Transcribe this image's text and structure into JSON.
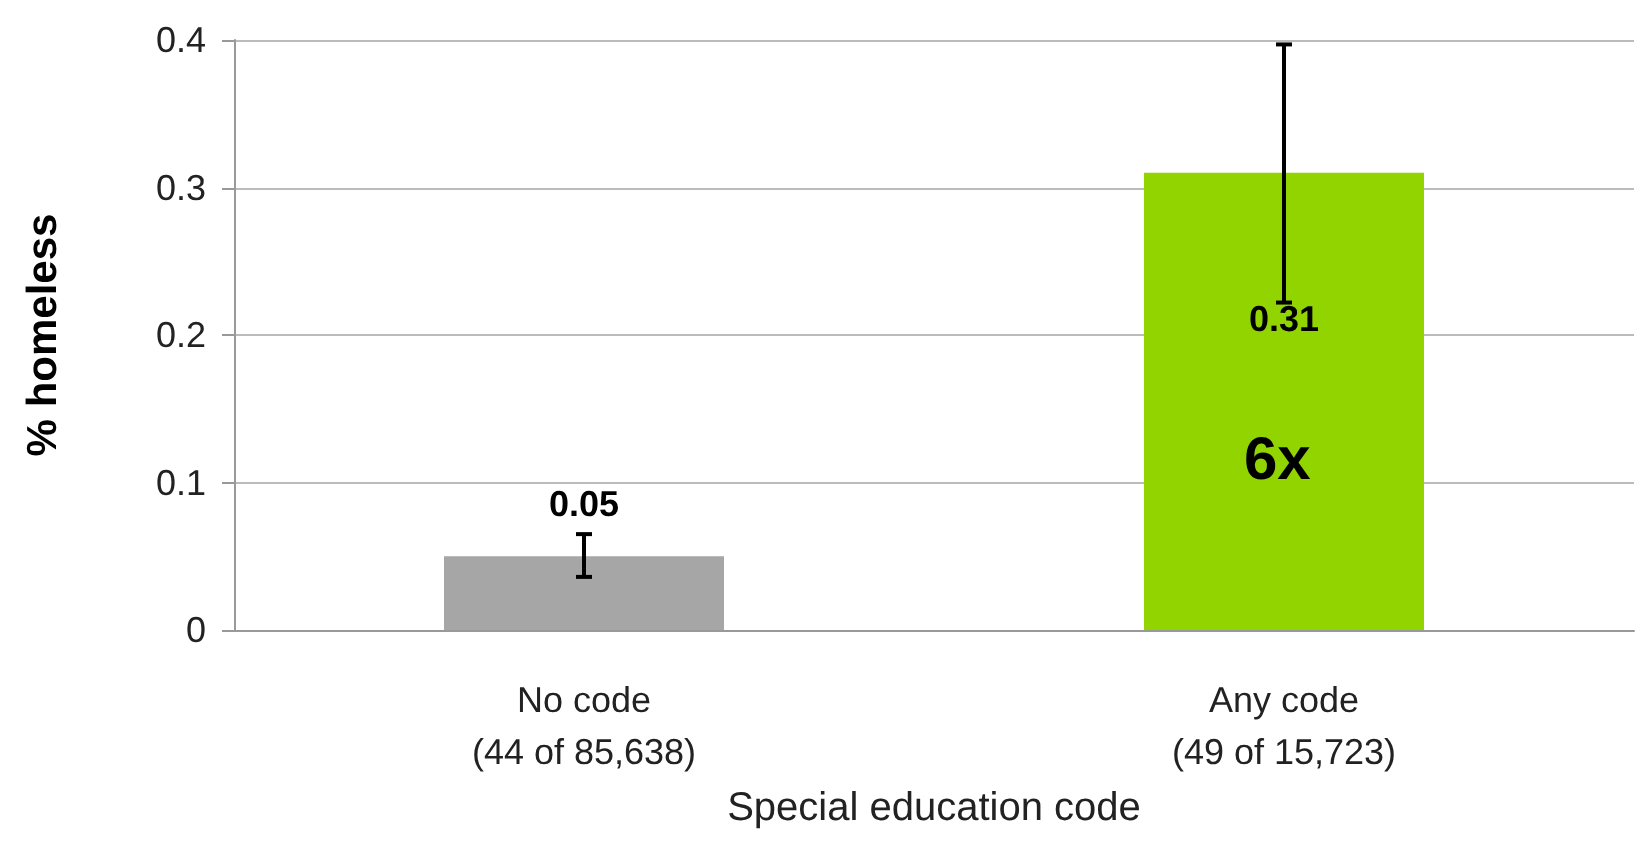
{
  "chart_data": {
    "type": "bar",
    "categories": [
      "No code\n(44 of 85,638)",
      "Any code\n(49 of 15,723)"
    ],
    "values": [
      0.05,
      0.31
    ],
    "colors": [
      "#a6a6a6",
      "#92d400"
    ],
    "errors": [
      [
        0.036,
        0.065
      ],
      [
        0.222,
        0.397
      ]
    ],
    "data_labels": true,
    "annotations": [
      "6x"
    ],
    "xlabel": "Special education code",
    "ylabel": "% homeless",
    "ylim": [
      0,
      0.4
    ],
    "yticks": [
      0,
      0.1,
      0.2,
      0.3,
      0.4
    ],
    "grid": "y"
  }
}
